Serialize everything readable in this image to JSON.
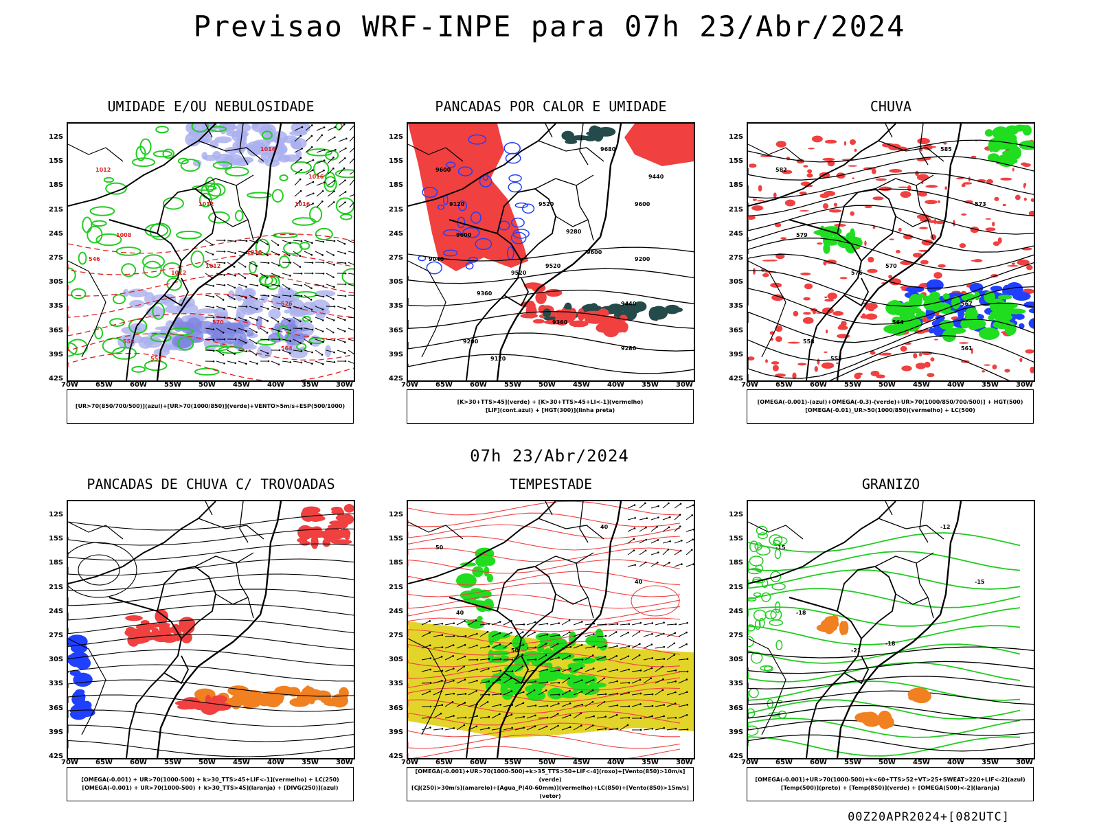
{
  "main_title": "Previsao WRF-INPE  para 07h 23/Abr/2024",
  "mid_title": "07h 23/Abr/2024",
  "footer": "00Z20APR2024+[082UTC]",
  "lat_labels": [
    "12S",
    "15S",
    "18S",
    "21S",
    "24S",
    "27S",
    "30S",
    "33S",
    "36S",
    "39S",
    "42S"
  ],
  "lon_labels": [
    "70W",
    "65W",
    "60W",
    "55W",
    "50W",
    "45W",
    "40W",
    "35W",
    "30W"
  ],
  "panels": [
    {
      "title": "UMIDADE E/OU NEBULOSIDADE",
      "legend": [
        "[UR>70(850/700/500)](azul)+[UR>70(1000/850)](verde)+VENTO>5m/s+ESP(500/1000)"
      ],
      "contour_labels": [
        "1016",
        "1012",
        "1008",
        "1012",
        "1016",
        "1012",
        "576",
        "570",
        "564",
        "558",
        "552",
        "546",
        "1016",
        "1012",
        "1016"
      ]
    },
    {
      "title": "PANCADAS POR CALOR E UMIDADE",
      "legend": [
        "[K>30+TTS>45](verde) + [K>30+TTS>45+LI<-1](vermelho)",
        "[LIF](cont.azul) + [HGT(300)](linha preta)"
      ],
      "contour_labels": [
        "9680",
        "9600",
        "9600",
        "9520",
        "9600",
        "9520",
        "9440",
        "9360",
        "9280",
        "9200",
        "9120",
        "9040",
        "9600",
        "9520",
        "9440",
        "9360",
        "9280",
        "9200",
        "9120"
      ]
    },
    {
      "title": "CHUVA",
      "legend": [
        "[OMEGA(-0.001)-(azul)+OMEGA(-0.3)-(verde)+UR>70(1000/850/700/500)] + HGT(500)",
        "[OMEGA(-0.01)_UR>50(1000/850)(vermelho) + LC(500)"
      ],
      "contour_labels": [
        "585",
        "582",
        "579",
        "576",
        "573",
        "570",
        "567",
        "564",
        "561",
        "558",
        "555"
      ]
    },
    {
      "title": "PANCADAS DE CHUVA C/ TROVOADAS",
      "legend": [
        "[OMEGA(-0.001) + UR>70(1000-500) + k>30_TTS>45+LIF<-1](vermelho) + LC(250)",
        "[OMEGA(-0.001) + UR>70(1000-500) + k>30_TTS>45](laranja) + [DIVG(250)](azul)"
      ],
      "contour_labels": []
    },
    {
      "title": "TEMPESTADE",
      "legend": [
        "[OMEGA(-0.001)+UR>70(1000-500)+k>35_TTS>50+LIF<-4](roxo)+[Vento(850)>10m/s](verde)",
        "[CJ(250)>30m/s](amarelo)+[Agua_P(40-60mm)](vermelho)+LC(850)+[Vento(850)>15m/s](vetor)"
      ],
      "contour_labels": [
        "40",
        "50",
        "40",
        "50",
        "40"
      ]
    },
    {
      "title": "GRANIZO",
      "legend": [
        "[OMEGA(-0.001)+UR>70(1000-500)+k<60+TTS>52+VT>25+SWEAT>220+LIF<-2](azul)",
        "[Temp(500)](preto) + [Temp(850)](verde) + [OMEGA(500)<-2](laranja)"
      ],
      "contour_labels": [
        "-12",
        "-15",
        "-18",
        "-21",
        "-15",
        "-18"
      ]
    }
  ]
}
